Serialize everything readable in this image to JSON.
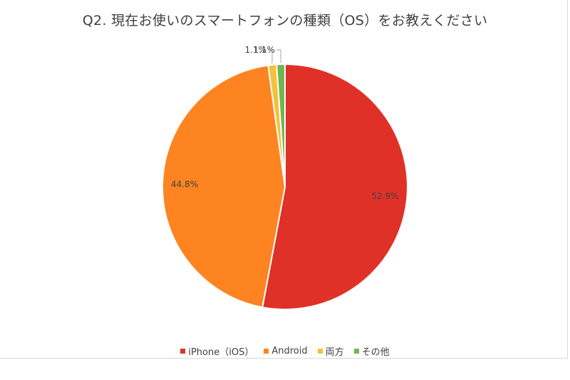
{
  "chart_data": {
    "type": "pie",
    "title": "Q2. 現在お使いのスマートフォンの種類（OS）をお教えください",
    "categories": [
      "iPhone（iOS）",
      "Android",
      "両方",
      "その他"
    ],
    "values": [
      52.9,
      44.8,
      1.1,
      1.1
    ],
    "data_labels": [
      "52.9%",
      "44.8%",
      "1.1%",
      "1.1%"
    ],
    "colors": [
      "#e03129",
      "#fd8421",
      "#f4c13b",
      "#70b650"
    ],
    "legend_position": "bottom"
  }
}
